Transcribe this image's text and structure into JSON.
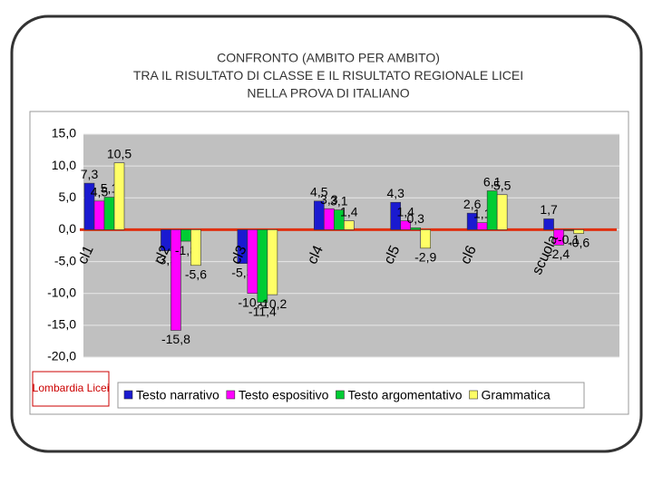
{
  "chart_data": {
    "type": "bar",
    "title": [
      "CONFRONTO (AMBITO PER AMBITO)",
      "TRA IL RISULTATO DI CLASSE E IL RISULTATO REGIONALE LICEI",
      "NELLA PROVA DI  ITALIANO"
    ],
    "note": "Lombardia Licei",
    "categories": [
      "cl1",
      "cl2",
      "cl3",
      "cl4",
      "cl5",
      "cl6",
      "scuola"
    ],
    "series": [
      {
        "name": "Testo narrativo",
        "color": "#1a1ad0",
        "values": [
          7.3,
          -3.3,
          -5.3,
          4.5,
          4.3,
          2.6,
          1.7
        ],
        "value_labels": [
          "7,3",
          "-3,3",
          "-5,3",
          "4,5",
          "4,3",
          "2,6",
          "1,7"
        ]
      },
      {
        "name": "Testo espositivo",
        "color": "#ff00ff",
        "values": [
          4.5,
          -15.8,
          -10.0,
          3.3,
          1.4,
          1.1,
          -2.4
        ],
        "value_labels": [
          "4,5",
          "-15,8",
          "-10,0",
          "3,3",
          "1,4",
          "1,1",
          "-2,4"
        ]
      },
      {
        "name": "Testo argomentativo",
        "color": "#00cc33",
        "values": [
          5.1,
          -1.8,
          -11.4,
          3.1,
          0.3,
          6.1,
          -0.1
        ],
        "value_labels": [
          "5,1",
          "-1,8",
          "-11,4",
          "3,1",
          "0,3",
          "6,1",
          "-0,1"
        ]
      },
      {
        "name": "Grammatica",
        "color": "#ffff66",
        "values": [
          10.5,
          -5.6,
          -10.2,
          1.4,
          -2.9,
          5.5,
          -0.6
        ],
        "value_labels": [
          "10,5",
          "-5,6",
          "-10,2",
          "1,4",
          "-2,9",
          "5,5",
          "-0,6"
        ]
      }
    ],
    "ylim": [
      -20,
      15
    ],
    "yticks": [
      {
        "value": -20,
        "label": "-20,0"
      },
      {
        "value": -15,
        "label": "-15,0"
      },
      {
        "value": -10,
        "label": "-10,0"
      },
      {
        "value": -5,
        "label": "-5,0"
      },
      {
        "value": 0,
        "label": "0,0"
      },
      {
        "value": 5,
        "label": "5,0"
      },
      {
        "value": 10,
        "label": "10,0"
      },
      {
        "value": 15,
        "label": "15,0"
      }
    ],
    "grid": true
  }
}
